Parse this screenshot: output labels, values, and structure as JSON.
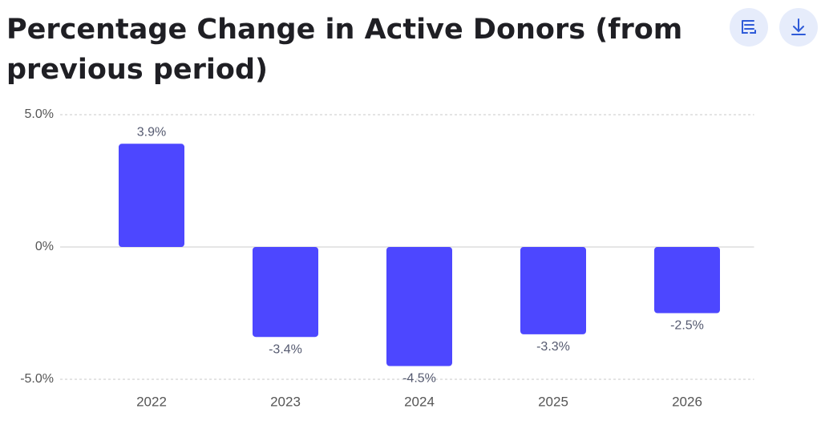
{
  "chart_data": {
    "type": "bar",
    "title": "Percentage Change in Active Donors (from previous period)",
    "categories": [
      "2022",
      "2023",
      "2024",
      "2025",
      "2026"
    ],
    "values": [
      3.9,
      -3.4,
      -4.5,
      -3.3,
      -2.5
    ],
    "value_labels": [
      "3.9%",
      "-3.4%",
      "-4.5%",
      "-3.3%",
      "-2.5%"
    ],
    "color": "#4d47ff",
    "ylim": [
      -5,
      5
    ],
    "yticks": [
      {
        "value": -5,
        "label": "-5.0%"
      },
      {
        "value": 0,
        "label": "0%"
      },
      {
        "value": 5,
        "label": "5.0%"
      }
    ],
    "grid": true
  }
}
